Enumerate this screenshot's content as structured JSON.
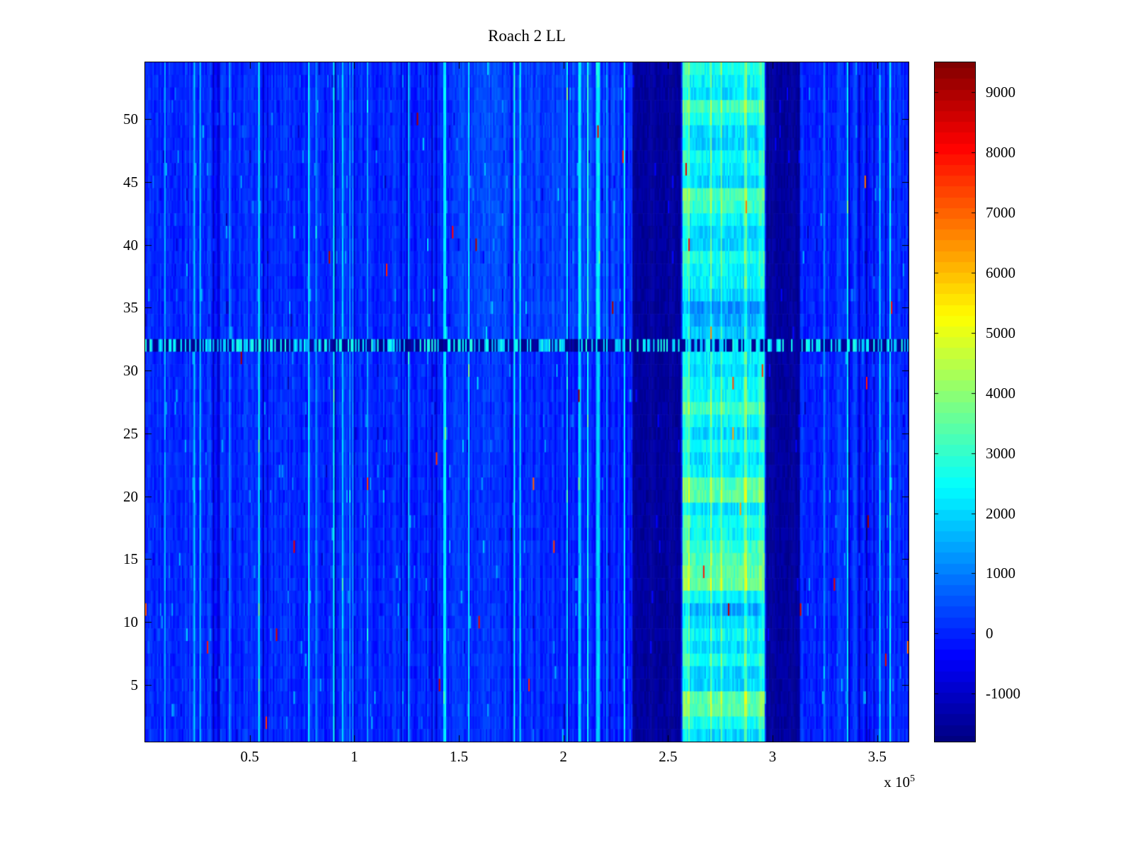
{
  "chart_data": {
    "type": "heatmap",
    "title": "Roach 2 LL",
    "x_multiplier_base": "x 10",
    "x_multiplier_exp": "5",
    "xlim": [
      0,
      365000
    ],
    "ylim": [
      0.5,
      54.5
    ],
    "rows": 54,
    "cols": 520,
    "colormap": "jet",
    "clim": [
      -1800,
      9500
    ],
    "seed": 1337,
    "x_ticks": [
      {
        "label": "0.5",
        "value": 50000
      },
      {
        "label": "1",
        "value": 100000
      },
      {
        "label": "1.5",
        "value": 150000
      },
      {
        "label": "2",
        "value": 200000
      },
      {
        "label": "2.5",
        "value": 250000
      },
      {
        "label": "3",
        "value": 300000
      },
      {
        "label": "3.5",
        "value": 350000
      }
    ],
    "y_ticks": [
      {
        "label": "5",
        "value": 5
      },
      {
        "label": "10",
        "value": 10
      },
      {
        "label": "15",
        "value": 15
      },
      {
        "label": "20",
        "value": 20
      },
      {
        "label": "25",
        "value": 25
      },
      {
        "label": "30",
        "value": 30
      },
      {
        "label": "35",
        "value": 35
      },
      {
        "label": "40",
        "value": 40
      },
      {
        "label": "45",
        "value": 45
      },
      {
        "label": "50",
        "value": 50
      }
    ],
    "colorbar_ticks": [
      {
        "label": "9000",
        "value": 9000
      },
      {
        "label": "8000",
        "value": 8000
      },
      {
        "label": "7000",
        "value": 7000
      },
      {
        "label": "6000",
        "value": 6000
      },
      {
        "label": "5000",
        "value": 5000
      },
      {
        "label": "4000",
        "value": 4000
      },
      {
        "label": "3000",
        "value": 3000
      },
      {
        "label": "2000",
        "value": 2000
      },
      {
        "label": "1000",
        "value": 1000
      },
      {
        "label": "0",
        "value": 0
      },
      {
        "label": "-1000",
        "value": -1000
      }
    ],
    "bands": {
      "dark1": [
        233000,
        256000
      ],
      "bright": [
        257000,
        296000
      ],
      "dark2": [
        297000,
        313000
      ]
    },
    "streak_row": 32,
    "bright_rows_boost": [
      3,
      4,
      13,
      14,
      15,
      16,
      20,
      21,
      27,
      43,
      44,
      51
    ],
    "bright_rows_dim": [
      10,
      11,
      33,
      34,
      35
    ],
    "background_value_range": [
      -650,
      2600
    ],
    "description": "Blue noise field (values mostly -500..1500) with many thin vertical cyan streaks; dark navy vertical band at x=2.33e5-2.56e5, bright cyan band (values ~2000-4500) at x=2.57e5-2.96e5, second dark navy band at x=2.97e5-3.13e5, and a dashed dark/bright horizontal streak at row 32."
  }
}
